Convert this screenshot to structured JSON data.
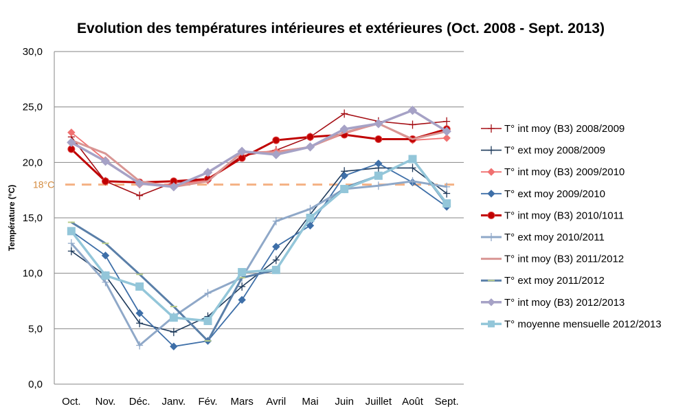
{
  "chart_data": {
    "type": "line",
    "title": "Evolution des températures intérieures et extérieures (Oct. 2008 - Sept. 2013)",
    "xlabel": "",
    "ylabel": "Température (°C)",
    "ylim": [
      0,
      30
    ],
    "yticks": [
      0,
      5,
      10,
      15,
      20,
      25,
      30
    ],
    "ytick_labels": [
      "0,0",
      "5,0",
      "10,0",
      "15,0",
      "20,0",
      "25,0",
      "30,0"
    ],
    "grid": true,
    "legend_position": "right",
    "categories": [
      "Oct.",
      "Nov.",
      "Déc.",
      "Janv.",
      "Fév.",
      "Mars",
      "Avril",
      "Mai",
      "Juin",
      "Juillet",
      "Août",
      "Sept."
    ],
    "reference_line": {
      "value": 18,
      "label": "18°C",
      "color": "#f4b183",
      "style": "dashed"
    },
    "series": [
      {
        "name": "T° int moy (B3) 2008/2009",
        "color": "#a50f15",
        "marker": "plus",
        "width": 1.6,
        "values": [
          22.3,
          18.3,
          17.0,
          18.2,
          18.4,
          20.6,
          21.1,
          22.3,
          24.4,
          23.7,
          23.4,
          23.7
        ]
      },
      {
        "name": "T° ext moy 2008/2009",
        "color": "#1f3b5c",
        "marker": "plus",
        "width": 1.6,
        "values": [
          12.0,
          9.8,
          5.5,
          4.7,
          6.1,
          8.8,
          11.2,
          15.3,
          19.2,
          19.5,
          19.5,
          17.2
        ]
      },
      {
        "name": "T° int moy (B3) 2009/2010",
        "color": "#f07070",
        "marker": "diamond",
        "width": 1.8,
        "values": [
          22.7,
          20.2,
          18.0,
          18.0,
          18.4,
          20.9,
          21.0,
          21.4,
          22.6,
          23.5,
          22.0,
          22.2
        ]
      },
      {
        "name": "T° ext moy 2009/2010",
        "color": "#3e6fa8",
        "marker": "diamond",
        "width": 1.8,
        "values": [
          13.8,
          11.6,
          6.4,
          3.4,
          3.9,
          7.6,
          12.4,
          14.3,
          18.8,
          19.9,
          18.2,
          16.0
        ]
      },
      {
        "name": "T° int moy (B3) 2010/1011",
        "color": "#c00000",
        "marker": "circle",
        "width": 3,
        "values": [
          21.2,
          18.3,
          18.2,
          18.3,
          18.5,
          20.4,
          22.0,
          22.3,
          22.5,
          22.1,
          22.1,
          23.0
        ]
      },
      {
        "name": "T° ext moy 2010/2011",
        "color": "#8fa8c8",
        "marker": "plus",
        "width": 3,
        "values": [
          12.7,
          9.2,
          3.5,
          6.1,
          8.2,
          9.6,
          14.7,
          15.8,
          17.6,
          17.9,
          18.3,
          17.8
        ]
      },
      {
        "name": "T° int moy (B3) 2011/2012",
        "color": "#d99694",
        "marker": "none",
        "width": 3,
        "values": [
          22.0,
          20.8,
          18.3,
          17.8,
          18.3,
          20.9,
          20.9,
          21.4,
          22.7,
          23.5,
          22.1,
          22.8
        ]
      },
      {
        "name": "T° ext moy 2011/2012",
        "color": "#5a7fa8",
        "marker": "dash",
        "width": 3,
        "values": [
          14.6,
          12.7,
          9.9,
          7.0,
          3.9,
          9.6,
          10.3,
          15.0,
          17.7,
          18.8,
          20.3,
          16.2
        ]
      },
      {
        "name": "T° int moy (B3) 2012/2013",
        "color": "#a6a2c6",
        "marker": "diamond",
        "width": 3.5,
        "values": [
          21.8,
          20.1,
          18.1,
          17.8,
          19.1,
          21.0,
          20.7,
          21.4,
          23.0,
          23.5,
          24.7,
          22.8
        ]
      },
      {
        "name": "T° moyenne mensuelle 2012/2013",
        "color": "#93c6d9",
        "marker": "square",
        "width": 3.5,
        "values": [
          13.8,
          9.8,
          8.8,
          6.0,
          5.7,
          10.1,
          10.3,
          15.0,
          17.6,
          18.8,
          20.3,
          16.3
        ]
      }
    ]
  }
}
